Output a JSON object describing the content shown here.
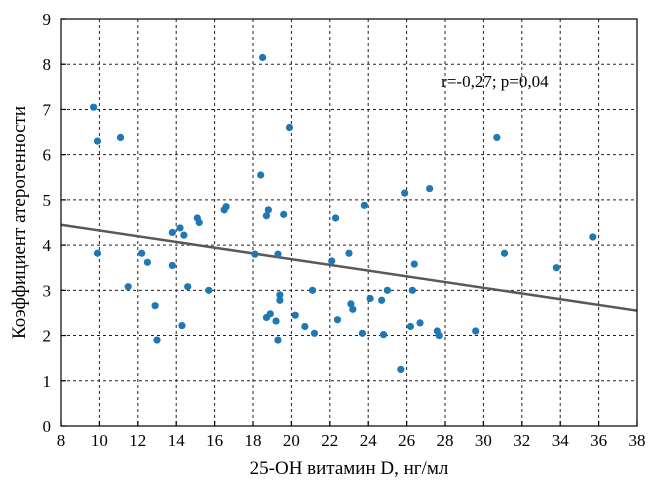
{
  "chart_data": {
    "type": "scatter",
    "title": "",
    "xlabel": "25-OH витамин D, нг/мл",
    "ylabel": "Коэффициент атерогенности",
    "xlim": [
      8,
      38
    ],
    "ylim": [
      0,
      9
    ],
    "x_ticks": [
      8,
      10,
      12,
      14,
      16,
      18,
      20,
      22,
      24,
      26,
      28,
      30,
      32,
      34,
      36,
      38
    ],
    "y_ticks": [
      0,
      1,
      2,
      3,
      4,
      5,
      6,
      7,
      8,
      9
    ],
    "x_tick_labels": [
      "8",
      "10",
      "12",
      "14",
      "16",
      "18",
      "20",
      "22",
      "24",
      "26",
      "28",
      "30",
      "32",
      "34",
      "36",
      "38"
    ],
    "y_tick_labels": [
      "0",
      "1",
      "2",
      "3",
      "4",
      "5",
      "6",
      "7",
      "8",
      "9"
    ],
    "grid": true,
    "annotation": "r=-0,27; p=0,04",
    "point_color": "#1f77b4",
    "trend_color": "#595959",
    "trendline": {
      "x": [
        8,
        38
      ],
      "y": [
        4.45,
        2.55
      ]
    },
    "points": [
      {
        "x": 9.7,
        "y": 7.05
      },
      {
        "x": 9.9,
        "y": 6.3
      },
      {
        "x": 9.9,
        "y": 3.82
      },
      {
        "x": 11.1,
        "y": 6.38
      },
      {
        "x": 11.5,
        "y": 3.08
      },
      {
        "x": 12.2,
        "y": 3.82
      },
      {
        "x": 12.5,
        "y": 3.62
      },
      {
        "x": 12.9,
        "y": 2.66
      },
      {
        "x": 13.0,
        "y": 1.9
      },
      {
        "x": 13.8,
        "y": 4.28
      },
      {
        "x": 13.8,
        "y": 3.55
      },
      {
        "x": 14.2,
        "y": 4.38
      },
      {
        "x": 14.3,
        "y": 2.22
      },
      {
        "x": 14.4,
        "y": 4.22
      },
      {
        "x": 14.6,
        "y": 3.08
      },
      {
        "x": 15.1,
        "y": 4.6
      },
      {
        "x": 15.2,
        "y": 4.5
      },
      {
        "x": 15.7,
        "y": 3.0
      },
      {
        "x": 16.5,
        "y": 4.78
      },
      {
        "x": 16.6,
        "y": 4.85
      },
      {
        "x": 18.1,
        "y": 3.8
      },
      {
        "x": 18.4,
        "y": 5.55
      },
      {
        "x": 18.5,
        "y": 8.15
      },
      {
        "x": 18.7,
        "y": 4.65
      },
      {
        "x": 18.7,
        "y": 2.4
      },
      {
        "x": 18.8,
        "y": 4.78
      },
      {
        "x": 18.9,
        "y": 2.48
      },
      {
        "x": 19.2,
        "y": 2.32
      },
      {
        "x": 19.3,
        "y": 1.9
      },
      {
        "x": 19.3,
        "y": 3.8
      },
      {
        "x": 19.4,
        "y": 2.9
      },
      {
        "x": 19.4,
        "y": 2.78
      },
      {
        "x": 19.6,
        "y": 4.68
      },
      {
        "x": 19.9,
        "y": 6.6
      },
      {
        "x": 20.2,
        "y": 2.45
      },
      {
        "x": 20.7,
        "y": 2.2
      },
      {
        "x": 21.1,
        "y": 3.0
      },
      {
        "x": 21.2,
        "y": 2.05
      },
      {
        "x": 22.1,
        "y": 3.65
      },
      {
        "x": 22.3,
        "y": 4.6
      },
      {
        "x": 22.4,
        "y": 2.35
      },
      {
        "x": 23.0,
        "y": 3.82
      },
      {
        "x": 23.1,
        "y": 2.7
      },
      {
        "x": 23.2,
        "y": 2.58
      },
      {
        "x": 23.7,
        "y": 2.05
      },
      {
        "x": 23.8,
        "y": 4.88
      },
      {
        "x": 24.1,
        "y": 2.82
      },
      {
        "x": 24.7,
        "y": 2.78
      },
      {
        "x": 24.8,
        "y": 2.02
      },
      {
        "x": 25.0,
        "y": 3.0
      },
      {
        "x": 25.7,
        "y": 1.25
      },
      {
        "x": 25.9,
        "y": 5.15
      },
      {
        "x": 26.2,
        "y": 2.2
      },
      {
        "x": 26.3,
        "y": 3.0
      },
      {
        "x": 26.4,
        "y": 3.58
      },
      {
        "x": 26.7,
        "y": 2.28
      },
      {
        "x": 27.2,
        "y": 5.25
      },
      {
        "x": 27.6,
        "y": 2.1
      },
      {
        "x": 27.7,
        "y": 2.0
      },
      {
        "x": 29.6,
        "y": 2.1
      },
      {
        "x": 30.7,
        "y": 6.38
      },
      {
        "x": 31.1,
        "y": 3.82
      },
      {
        "x": 33.8,
        "y": 3.5
      },
      {
        "x": 35.7,
        "y": 4.18
      }
    ]
  }
}
